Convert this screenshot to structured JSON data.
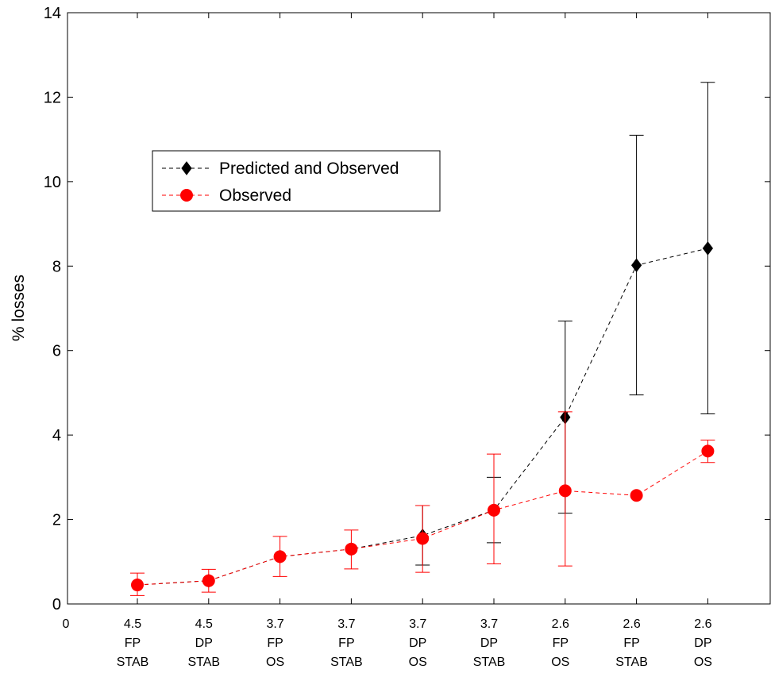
{
  "chart_data": {
    "type": "line",
    "ylabel": "% losses",
    "ylim": [
      0,
      14
    ],
    "yticks": [
      0,
      2,
      4,
      6,
      8,
      10,
      12,
      14
    ],
    "categories": [
      [
        "4.5",
        "FP",
        "STAB"
      ],
      [
        "4.5",
        "DP",
        "STAB"
      ],
      [
        "3.7",
        "FP",
        "OS"
      ],
      [
        "3.7",
        "FP",
        "STAB"
      ],
      [
        "3.7",
        "DP",
        "OS"
      ],
      [
        "3.7",
        "DP",
        "STAB"
      ],
      [
        "2.6",
        "FP",
        "OS"
      ],
      [
        "2.6",
        "FP",
        "STAB"
      ],
      [
        "2.6",
        "DP",
        "OS"
      ]
    ],
    "x_origin_tick": "0",
    "legend_placement": "upper-left",
    "grid": false,
    "series": [
      {
        "name": "Predicted and Observed",
        "color": "#000000",
        "marker": "diamond",
        "linestyle": "dashed",
        "values": [
          0.45,
          0.55,
          1.12,
          1.3,
          1.62,
          2.22,
          4.42,
          8.02,
          8.42
        ],
        "err_low": [
          null,
          null,
          null,
          null,
          0.92,
          1.45,
          2.15,
          4.95,
          4.5
        ],
        "err_high": [
          null,
          null,
          null,
          null,
          2.33,
          3.0,
          6.7,
          11.1,
          12.35
        ]
      },
      {
        "name": "Observed",
        "color": "#ff0000",
        "marker": "circle",
        "linestyle": "dashed",
        "values": [
          0.45,
          0.55,
          1.12,
          1.3,
          1.55,
          2.22,
          2.68,
          2.57,
          3.62
        ],
        "err_low": [
          0.2,
          0.28,
          0.65,
          0.83,
          0.75,
          0.95,
          0.9,
          null,
          3.35
        ],
        "err_high": [
          0.73,
          0.82,
          1.6,
          1.75,
          2.33,
          3.55,
          4.55,
          null,
          3.88
        ]
      }
    ]
  }
}
